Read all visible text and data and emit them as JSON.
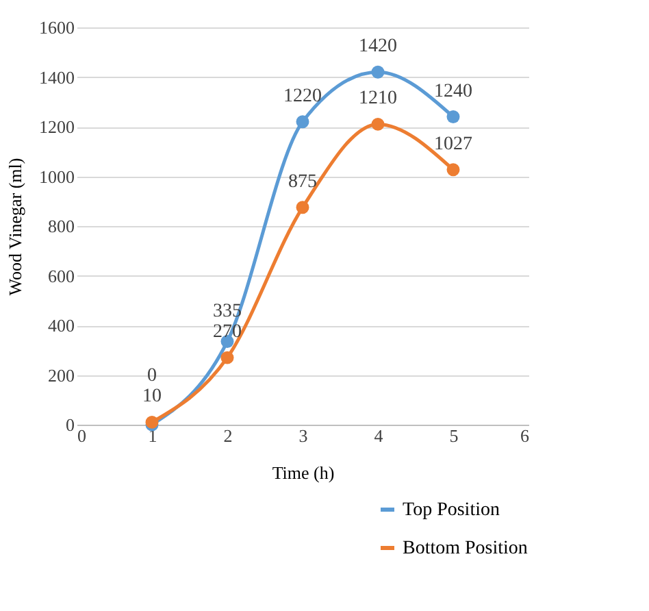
{
  "chart_data": {
    "type": "line",
    "xlabel": "Time (h)",
    "ylabel": "Wood Vinegar (ml)",
    "x": [
      1,
      2,
      3,
      4,
      5
    ],
    "series": [
      {
        "name": "Top Position",
        "color": "#5b9bd5",
        "values": [
          0,
          335,
          1220,
          1420,
          1240
        ]
      },
      {
        "name": "Bottom Position",
        "color": "#ed7d31",
        "values": [
          10,
          270,
          875,
          1210,
          1027
        ]
      }
    ],
    "xlim": [
      0,
      6
    ],
    "xticks": [
      0,
      1,
      2,
      3,
      4,
      5,
      6
    ],
    "ylim": [
      0,
      1600
    ],
    "yticks": [
      0,
      200,
      400,
      600,
      800,
      1000,
      1200,
      1400,
      1600
    ],
    "grid": "y",
    "legend": "bottom right",
    "marker": "circle",
    "line_style": "solid",
    "data_labels": true
  }
}
